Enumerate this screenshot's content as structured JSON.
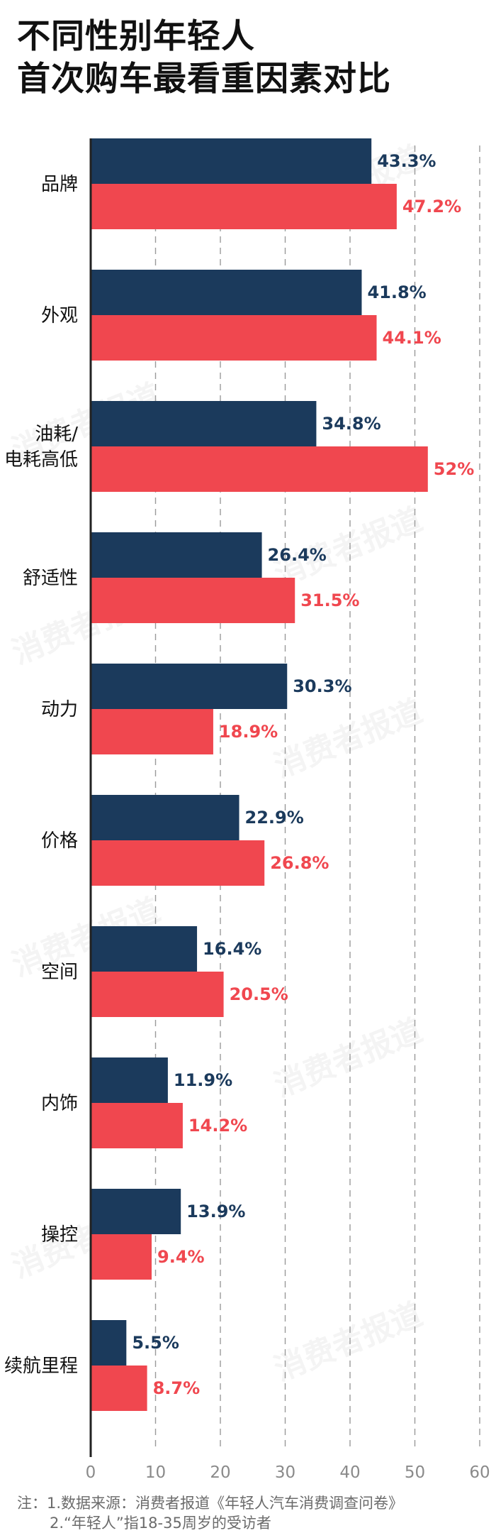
{
  "title": {
    "line1": "不同性别年轻人",
    "line2": "首次购车最看重因素对比"
  },
  "watermark": "消费者报道",
  "notes": {
    "line1": "注：1.数据来源：消费者报道《年轻人汽车消费调查问卷》",
    "line2": "2.“年轻人”指18-35周岁的受访者"
  },
  "colors": {
    "male": "#1b3a5c",
    "female": "#f0474f",
    "grid": "#9a9a9a",
    "axis": "#222222"
  },
  "chart_data": {
    "type": "bar",
    "orientation": "horizontal",
    "categories": [
      "品牌",
      "外观",
      "油耗/\n电耗高低",
      "舒适性",
      "动力",
      "价格",
      "空间",
      "内饰",
      "操控",
      "续航里程"
    ],
    "series": [
      {
        "values": [
          43.3,
          41.8,
          34.8,
          26.4,
          30.3,
          22.9,
          16.4,
          11.9,
          13.9,
          5.5
        ],
        "labels": [
          "43.3%",
          "41.8%",
          "34.8%",
          "26.4%",
          "30.3%",
          "22.9%",
          "16.4%",
          "11.9%",
          "13.9%",
          "5.5%"
        ]
      },
      {
        "values": [
          47.2,
          44.1,
          52,
          31.5,
          18.9,
          26.8,
          20.5,
          14.2,
          9.4,
          8.7
        ],
        "labels": [
          "47.2%",
          "44.1%",
          "52%",
          "31.5%",
          "18.9%",
          "26.8%",
          "20.5%",
          "14.2%",
          "9.4%",
          "8.7%"
        ]
      }
    ],
    "xlim": [
      0,
      60
    ],
    "xticks": [
      0,
      10,
      20,
      30,
      40,
      50,
      60
    ],
    "grid": true,
    "legend": "none"
  }
}
